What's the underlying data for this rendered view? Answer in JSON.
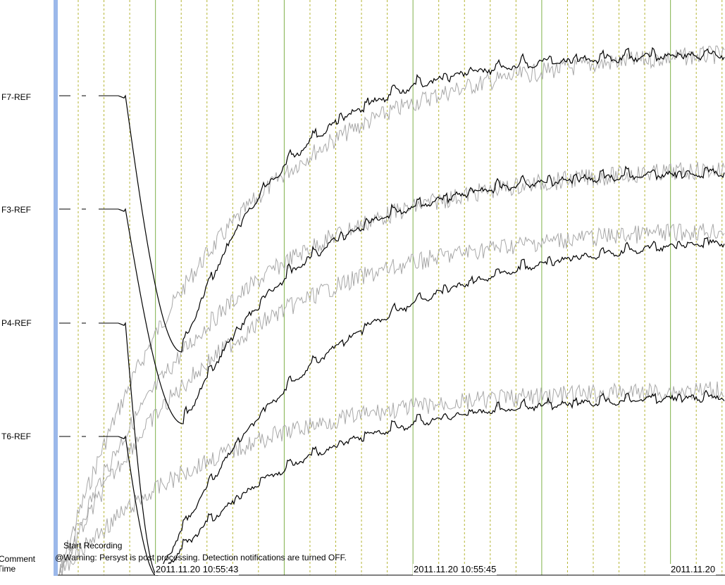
{
  "channels": [
    {
      "label": "F7-REF"
    },
    {
      "label": "F3-REF"
    },
    {
      "label": "P4-REF"
    },
    {
      "label": "T6-REF"
    }
  ],
  "left_margin": {
    "comment_label": "Comment",
    "time_label": "Time"
  },
  "annotations": {
    "start_recording": "Start Recording",
    "warning": "@Warning: Persyst is post processing. Detection notifications are turned OFF."
  },
  "timestamps": [
    "2011.11.20 10:55:43",
    "2011.11.20 10:55:45",
    "2011.11.20"
  ],
  "colors": {
    "trace": "#000000",
    "overlay_trace": "#a8a8a8",
    "major_grid": "#7fb04a",
    "minor_grid": "#b5b535",
    "cursor": "#9bb8ea"
  }
}
